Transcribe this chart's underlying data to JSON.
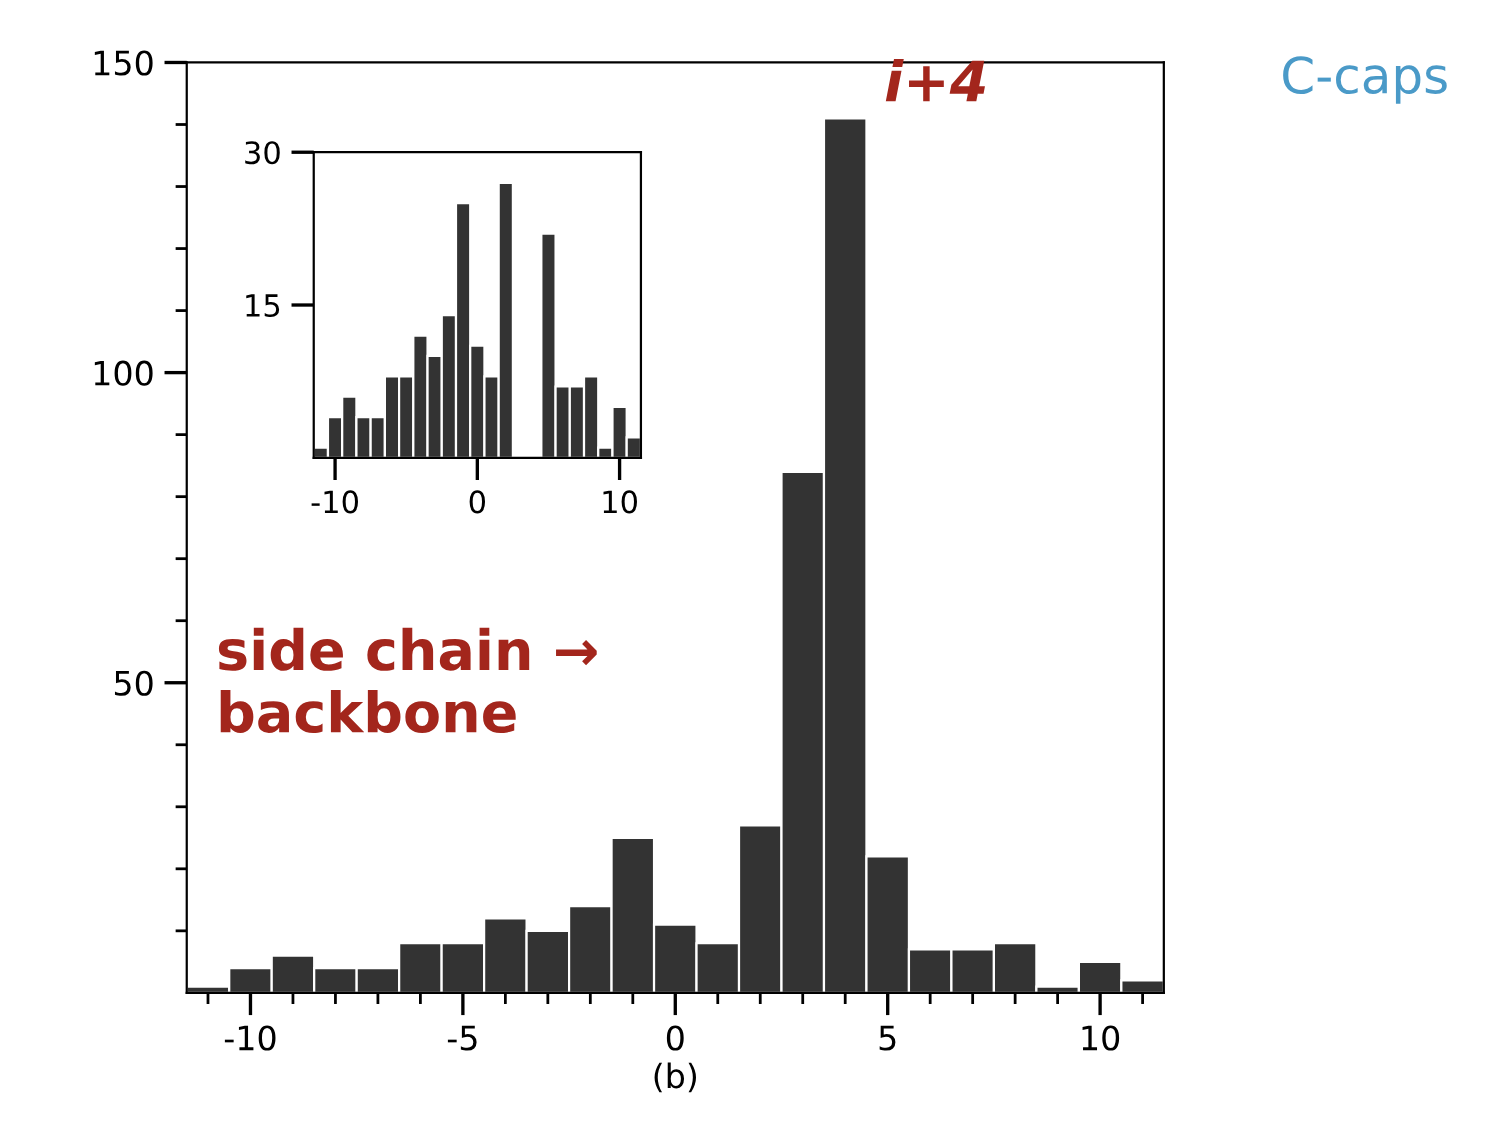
{
  "chart_data": [
    {
      "type": "histogram",
      "xlabel": "(b)",
      "bins": [
        -11.5,
        -10.5,
        -9.5,
        -8.5,
        -7.5,
        -6.5,
        -5.5,
        -4.5,
        -3.5,
        -2.5,
        -1.5,
        -0.5,
        0.5,
        1.5,
        2.5,
        3.5,
        4.5,
        5.5,
        6.5,
        7.5,
        8.5,
        9.5,
        10.5,
        11.5
      ],
      "values": [
        1,
        4,
        6,
        4,
        4,
        8,
        8,
        12,
        10,
        14,
        25,
        11,
        8,
        27,
        84,
        141,
        22,
        7,
        7,
        8,
        1,
        5,
        2
      ],
      "color": "#333333",
      "xlim": [
        -11.5,
        11.5
      ],
      "ylim": [
        0,
        150
      ],
      "xticks": [
        {
          "value": -11,
          "label": null
        },
        -10,
        {
          "value": -9,
          "label": null
        },
        {
          "value": -8,
          "label": null
        },
        {
          "value": -7,
          "label": null
        },
        {
          "value": -6,
          "label": null
        },
        -5,
        {
          "value": -4,
          "label": null
        },
        {
          "value": -3,
          "label": null
        },
        {
          "value": -2,
          "label": null
        },
        {
          "value": -1,
          "label": null
        },
        0,
        {
          "value": 1,
          "label": null
        },
        {
          "value": 2,
          "label": null
        },
        {
          "value": 3,
          "label": null
        },
        {
          "value": 4,
          "label": null
        },
        5,
        {
          "value": 6,
          "label": null
        },
        {
          "value": 7,
          "label": null
        },
        {
          "value": 8,
          "label": null
        },
        {
          "value": 9,
          "label": null
        },
        10,
        {
          "value": 11,
          "label": null
        }
      ],
      "yticks": [
        {
          "value": 10,
          "label": null
        },
        {
          "value": 20,
          "label": null
        },
        {
          "value": 30,
          "label": null
        },
        {
          "value": 40,
          "label": null
        },
        50,
        {
          "value": 60,
          "label": null
        },
        {
          "value": 70,
          "label": null
        },
        {
          "value": 80,
          "label": null
        },
        {
          "value": 90,
          "label": null
        },
        100,
        {
          "value": 110,
          "label": null
        },
        {
          "value": 120,
          "label": null
        },
        {
          "value": 130,
          "label": null
        },
        {
          "value": 140,
          "label": null
        },
        150
      ],
      "annotations": [
        {
          "text": "i+4",
          "x": 4,
          "y": 141
        },
        "side chain →\nbackbone",
        "C-caps"
      ]
    },
    {
      "type": "histogram",
      "bins": [
        -11.5,
        -10.5,
        -9.5,
        -8.5,
        -7.5,
        -6.5,
        -5.5,
        -4.5,
        -3.5,
        -2.5,
        -1.5,
        -0.5,
        0.5,
        1.5,
        2.5,
        3.5,
        4.5,
        5.5,
        6.5,
        7.5,
        8.5,
        9.5,
        10.5,
        11.5
      ],
      "values": [
        1,
        4,
        6,
        4,
        4,
        8,
        8,
        12,
        10,
        14,
        25,
        11,
        8,
        27,
        null,
        null,
        22,
        7,
        7,
        8,
        1,
        5,
        2
      ],
      "color": "#333333",
      "xlim": [
        -11.5,
        11.5
      ],
      "ylim": [
        0,
        30
      ],
      "xticks": [
        -10,
        0,
        10
      ],
      "yticks": [
        15,
        30
      ]
    }
  ]
}
